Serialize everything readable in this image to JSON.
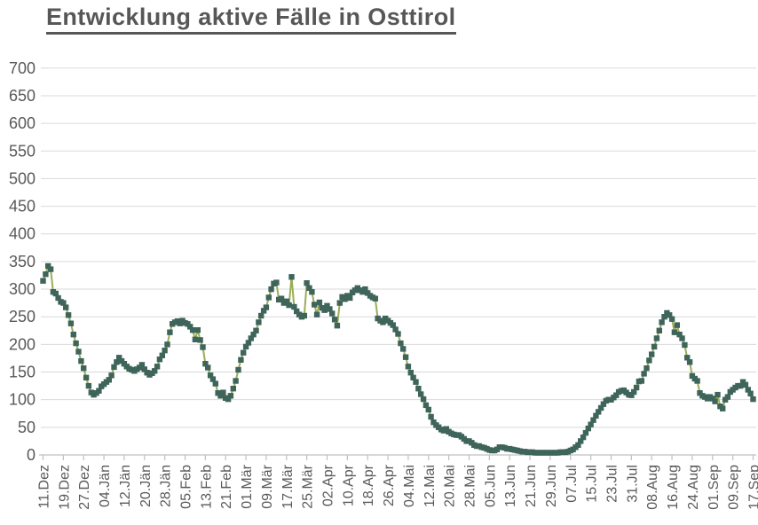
{
  "page": {
    "background": "#ffffff"
  },
  "chart_data": {
    "type": "line",
    "title": "Entwicklung aktive Fälle in Osttirol",
    "xlabel": "",
    "ylabel": "",
    "ylim": [
      0,
      700
    ],
    "y_tick_step": 50,
    "y_tick_labels": [
      "0",
      "50",
      "100",
      "150",
      "200",
      "250",
      "300",
      "350",
      "400",
      "450",
      "500",
      "550",
      "600",
      "650",
      "700"
    ],
    "x_tick_labels": [
      "11.Dez",
      "19.Dez",
      "27.Dez",
      "04.Jän",
      "12.Jän",
      "20.Jän",
      "28.Jän",
      "05.Feb",
      "13.Feb",
      "21.Feb",
      "01.Mär",
      "09.Mär",
      "17.Mär",
      "25.Mär",
      "02.Apr",
      "10.Apr",
      "18.Apr",
      "26.Apr",
      "04.Mai",
      "12.Mai",
      "20.Mai",
      "28.Mai",
      "05.Jun",
      "13.Jun",
      "21.Jun",
      "29.Jun",
      "07.Jul",
      "15.Jul",
      "23.Jul",
      "31.Jul",
      "08.Aug",
      "16.Aug",
      "24.Aug",
      "01.Sep",
      "09.Sep",
      "17.Sep"
    ],
    "points_per_x_tick": 8,
    "x_label_rotation_deg": -90,
    "grid": "horizontal",
    "legend": "none",
    "marker_shape": "square",
    "values": [
      315,
      327,
      342,
      336,
      295,
      292,
      284,
      277,
      275,
      267,
      253,
      238,
      218,
      202,
      187,
      170,
      157,
      140,
      125,
      113,
      109,
      112,
      116,
      124,
      128,
      132,
      136,
      144,
      159,
      168,
      176,
      170,
      165,
      160,
      156,
      154,
      152,
      155,
      158,
      163,
      155,
      149,
      145,
      148,
      152,
      160,
      173,
      180,
      189,
      200,
      222,
      237,
      240,
      242,
      238,
      243,
      239,
      237,
      232,
      226,
      209,
      226,
      208,
      195,
      165,
      158,
      144,
      137,
      129,
      112,
      107,
      113,
      103,
      101,
      107,
      120,
      134,
      154,
      172,
      185,
      196,
      203,
      211,
      218,
      225,
      240,
      252,
      261,
      267,
      285,
      300,
      310,
      312,
      281,
      283,
      275,
      278,
      271,
      322,
      268,
      260,
      254,
      250,
      252,
      311,
      302,
      295,
      272,
      254,
      276,
      266,
      262,
      270,
      264,
      256,
      245,
      234,
      275,
      286,
      282,
      288,
      284,
      294,
      298,
      302,
      298,
      295,
      300,
      293,
      288,
      285,
      283,
      247,
      243,
      240,
      247,
      243,
      239,
      235,
      227,
      219,
      202,
      192,
      177,
      160,
      149,
      140,
      132,
      120,
      110,
      101,
      90,
      82,
      69,
      59,
      54,
      50,
      46,
      44,
      47,
      42,
      39,
      37,
      36,
      36,
      33,
      29,
      25,
      25,
      22,
      18,
      16,
      16,
      14,
      13,
      11,
      9,
      8,
      8,
      10,
      14,
      14,
      13,
      11,
      11,
      10,
      9,
      8,
      7,
      6,
      6,
      5,
      5,
      5,
      4,
      4,
      4,
      4,
      4,
      4,
      4,
      4,
      4,
      4,
      5,
      5,
      5,
      6,
      8,
      10,
      14,
      18,
      25,
      32,
      40,
      48,
      55,
      63,
      71,
      78,
      85,
      92,
      98,
      100,
      100,
      104,
      108,
      114,
      116,
      117,
      113,
      109,
      108,
      114,
      122,
      133,
      134,
      147,
      157,
      171,
      182,
      196,
      211,
      225,
      240,
      250,
      257,
      253,
      246,
      222,
      235,
      218,
      211,
      199,
      176,
      168,
      143,
      138,
      134,
      112,
      107,
      105,
      102,
      105,
      102,
      97,
      109,
      88,
      84,
      100,
      105,
      114,
      118,
      122,
      125,
      125,
      132,
      127,
      118,
      111,
      101
    ],
    "colors": {
      "line": "#9aad55",
      "marker": "#3f655b",
      "grid": "#d9d9d9",
      "axis": "#c0c0c0",
      "tick_text": "#595959",
      "title": "#575757"
    }
  }
}
